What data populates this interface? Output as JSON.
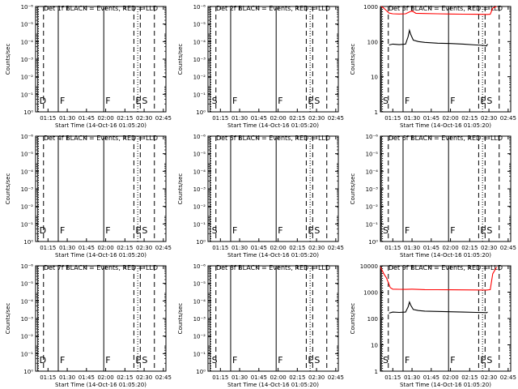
{
  "time_tick_labels": [
    "01:15",
    "01:30",
    "01:45",
    "02:00",
    "02:15",
    "02:30",
    "02:45"
  ],
  "colors": {
    "events": "#000000",
    "lld": "#ff0000",
    "axis": "#000000",
    "background": "#ffffff"
  },
  "chart_data": [
    {
      "type": "line",
      "title": "Det 1f BLACK = Events, RED = LLD",
      "xlabel": "Start Time (14-Oct-16 01:05:20)",
      "ylabel": "Counts/sec",
      "xlim": [
        "01:05:20",
        "02:47:00"
      ],
      "ylim": [
        1,
        10000
      ],
      "yscale": "log",
      "ytick_labels": [
        "10⁰",
        "10⁻¹",
        "10⁻²",
        "10⁻³",
        "10⁻⁴",
        "10⁻⁵",
        "10⁻⁶"
      ],
      "series": [],
      "markers": [
        {
          "time": "01:07:00",
          "style": "solid",
          "label": "D"
        },
        {
          "time": "01:07:30",
          "style": "dotted",
          "label": ""
        },
        {
          "time": "01:11:30",
          "style": "dashed",
          "label": ""
        },
        {
          "time": "01:23:00",
          "style": "solid",
          "label": "F"
        },
        {
          "time": "01:58:30",
          "style": "solid",
          "label": "F"
        },
        {
          "time": "02:22:00",
          "style": "dashed",
          "label": "E"
        },
        {
          "time": "02:25:00",
          "style": "dotted",
          "label": ""
        },
        {
          "time": "02:27:00",
          "style": "dashed",
          "label": "S"
        },
        {
          "time": "02:38:00",
          "style": "dashed",
          "label": ""
        }
      ]
    },
    {
      "type": "line",
      "title": "Det 2f BLACK = Events, RED = LLD",
      "xlabel": "Start Time (14-Oct-16 01:05:20)",
      "ylabel": "Counts/sec",
      "xlim": [
        "01:05:20",
        "02:47:00"
      ],
      "ylim": [
        1,
        10000
      ],
      "yscale": "log",
      "ytick_labels": [
        "10⁰",
        "10⁻¹",
        "10⁻²",
        "10⁻³",
        "10⁻⁴",
        "10⁻⁵",
        "10⁻⁶"
      ],
      "series": [],
      "markers": [
        {
          "time": "01:07:00",
          "style": "solid",
          "label": "S"
        },
        {
          "time": "01:07:30",
          "style": "dotted",
          "label": ""
        },
        {
          "time": "01:11:30",
          "style": "dashed",
          "label": ""
        },
        {
          "time": "01:23:00",
          "style": "solid",
          "label": "F"
        },
        {
          "time": "01:58:30",
          "style": "solid",
          "label": "F"
        },
        {
          "time": "02:22:00",
          "style": "dashed",
          "label": "E"
        },
        {
          "time": "02:25:00",
          "style": "dotted",
          "label": ""
        },
        {
          "time": "02:27:00",
          "style": "dashed",
          "label": "S"
        },
        {
          "time": "02:38:00",
          "style": "dashed",
          "label": ""
        }
      ]
    },
    {
      "type": "line",
      "title": "Det 3f BLACK = Events, RED = LLD",
      "xlabel": "Start Time (14-Oct-16 01:05:20)",
      "ylabel": "Counts/sec",
      "xlim": [
        "01:05:20",
        "02:47:00"
      ],
      "ylim": [
        1,
        1000
      ],
      "yscale": "log",
      "ytick_labels": [
        "1",
        "10",
        "100",
        "1000"
      ],
      "series": [
        {
          "color": "#ff0000",
          "x": [
            "01:06:00",
            "01:08:00",
            "01:12:00",
            "01:15:00",
            "01:20:00",
            "01:25:00",
            "01:28:00",
            "01:30:00",
            "01:33:00",
            "01:40:00",
            "01:50:00",
            "02:00:00",
            "02:10:00",
            "02:20:00",
            "02:28:00",
            "02:31:00",
            "02:33:00",
            "02:36:00"
          ],
          "values": [
            1000,
            900,
            650,
            620,
            610,
            620,
            700,
            750,
            640,
            630,
            620,
            610,
            605,
            600,
            595,
            600,
            900,
            1000
          ]
        },
        {
          "color": "#000000",
          "x": [
            "01:12:00",
            "01:15:00",
            "01:20:00",
            "01:25:00",
            "01:27:00",
            "01:28:00",
            "01:29:00",
            "01:31:00",
            "01:35:00",
            "01:40:00",
            "01:50:00",
            "02:00:00",
            "02:10:00",
            "02:20:00",
            "02:26:00",
            "02:28:00",
            "02:29:00"
          ],
          "values": [
            80,
            85,
            82,
            85,
            140,
            210,
            160,
            110,
            100,
            95,
            90,
            88,
            85,
            80,
            78,
            75,
            85
          ]
        }
      ],
      "markers": [
        {
          "time": "01:06:00",
          "style": "solid",
          "label": "S"
        },
        {
          "time": "01:07:00",
          "style": "dotted",
          "label": ""
        },
        {
          "time": "01:11:30",
          "style": "dashed",
          "label": ""
        },
        {
          "time": "01:23:00",
          "style": "solid",
          "label": "F"
        },
        {
          "time": "01:58:30",
          "style": "solid",
          "label": "F"
        },
        {
          "time": "02:22:00",
          "style": "dashed",
          "label": "E"
        },
        {
          "time": "02:25:00",
          "style": "dotted",
          "label": ""
        },
        {
          "time": "02:27:00",
          "style": "dashed",
          "label": "S"
        },
        {
          "time": "02:38:00",
          "style": "dashed",
          "label": ""
        }
      ]
    },
    {
      "type": "line",
      "title": "Det 4f BLACK = Events, RED = LLD",
      "xlabel": "Start Time (14-Oct-16 01:05:20)",
      "ylabel": "Counts/sec",
      "xlim": [
        "01:05:20",
        "02:47:00"
      ],
      "ylim": [
        1,
        10000
      ],
      "yscale": "log",
      "ytick_labels": [
        "10⁰",
        "10⁻¹",
        "10⁻²",
        "10⁻³",
        "10⁻⁴",
        "10⁻⁵",
        "10⁻⁶"
      ],
      "series": [],
      "markers": [
        {
          "time": "01:07:00",
          "style": "solid",
          "label": "D"
        },
        {
          "time": "01:07:30",
          "style": "dotted",
          "label": ""
        },
        {
          "time": "01:11:30",
          "style": "dashed",
          "label": ""
        },
        {
          "time": "01:23:00",
          "style": "solid",
          "label": "F"
        },
        {
          "time": "01:58:30",
          "style": "solid",
          "label": "F"
        },
        {
          "time": "02:22:00",
          "style": "dashed",
          "label": "E"
        },
        {
          "time": "02:25:00",
          "style": "dotted",
          "label": ""
        },
        {
          "time": "02:27:00",
          "style": "dashed",
          "label": "S"
        },
        {
          "time": "02:38:00",
          "style": "dashed",
          "label": ""
        }
      ]
    },
    {
      "type": "line",
      "title": "Det 5f BLACK = Events, RED = LLD",
      "xlabel": "Start Time (14-Oct-16 01:05:20)",
      "ylabel": "Counts/sec",
      "xlim": [
        "01:05:20",
        "02:47:00"
      ],
      "ylim": [
        1,
        10000
      ],
      "yscale": "log",
      "ytick_labels": [
        "10⁰",
        "10⁻¹",
        "10⁻²",
        "10⁻³",
        "10⁻⁴",
        "10⁻⁵",
        "10⁻⁶"
      ],
      "series": [],
      "markers": [
        {
          "time": "01:07:00",
          "style": "solid",
          "label": "S"
        },
        {
          "time": "01:07:30",
          "style": "dotted",
          "label": ""
        },
        {
          "time": "01:11:30",
          "style": "dashed",
          "label": ""
        },
        {
          "time": "01:23:00",
          "style": "solid",
          "label": "F"
        },
        {
          "time": "01:58:30",
          "style": "solid",
          "label": "F"
        },
        {
          "time": "02:22:00",
          "style": "dashed",
          "label": "E"
        },
        {
          "time": "02:25:00",
          "style": "dotted",
          "label": ""
        },
        {
          "time": "02:27:00",
          "style": "dashed",
          "label": "S"
        },
        {
          "time": "02:38:00",
          "style": "dashed",
          "label": ""
        }
      ]
    },
    {
      "type": "line",
      "title": "Det 6f BLACK = Events, RED = LLD",
      "xlabel": "Start Time (14-Oct-16 01:05:20)",
      "ylabel": "Counts/sec",
      "xlim": [
        "01:05:20",
        "02:47:00"
      ],
      "ylim": [
        1,
        10000
      ],
      "yscale": "log",
      "ytick_labels": [
        "10⁰",
        "10⁻¹",
        "10⁻²",
        "10⁻³",
        "10⁻⁴",
        "10⁻⁵",
        "10⁻⁶"
      ],
      "series": [],
      "markers": [
        {
          "time": "01:06:00",
          "style": "solid",
          "label": "S"
        },
        {
          "time": "01:07:00",
          "style": "dotted",
          "label": ""
        },
        {
          "time": "01:11:30",
          "style": "dashed",
          "label": ""
        },
        {
          "time": "01:23:00",
          "style": "solid",
          "label": "F"
        },
        {
          "time": "01:58:30",
          "style": "solid",
          "label": "F"
        },
        {
          "time": "02:22:00",
          "style": "dashed",
          "label": "E"
        },
        {
          "time": "02:25:00",
          "style": "dotted",
          "label": ""
        },
        {
          "time": "02:27:00",
          "style": "dashed",
          "label": "S"
        },
        {
          "time": "02:38:00",
          "style": "dashed",
          "label": ""
        }
      ]
    },
    {
      "type": "line",
      "title": "Det 7f BLACK = Events, RED = LLD",
      "xlabel": "Start Time (14-Oct-16 01:05:20)",
      "ylabel": "Counts/sec",
      "xlim": [
        "01:05:20",
        "02:47:00"
      ],
      "ylim": [
        1,
        10000
      ],
      "yscale": "log",
      "ytick_labels": [
        "10⁰",
        "10⁻¹",
        "10⁻²",
        "10⁻³",
        "10⁻⁴",
        "10⁻⁵",
        "10⁻⁶"
      ],
      "series": [],
      "markers": [
        {
          "time": "01:07:00",
          "style": "solid",
          "label": "D"
        },
        {
          "time": "01:07:30",
          "style": "dotted",
          "label": ""
        },
        {
          "time": "01:11:30",
          "style": "dashed",
          "label": ""
        },
        {
          "time": "01:23:00",
          "style": "solid",
          "label": "F"
        },
        {
          "time": "01:58:30",
          "style": "solid",
          "label": "F"
        },
        {
          "time": "02:22:00",
          "style": "dashed",
          "label": "E"
        },
        {
          "time": "02:25:00",
          "style": "dotted",
          "label": ""
        },
        {
          "time": "02:27:00",
          "style": "dashed",
          "label": "S"
        },
        {
          "time": "02:38:00",
          "style": "dashed",
          "label": ""
        }
      ]
    },
    {
      "type": "line",
      "title": "Det 8f BLACK = Events, RED = LLD",
      "xlabel": "Start Time (14-Oct-16 01:05:20)",
      "ylabel": "Counts/sec",
      "xlim": [
        "01:05:20",
        "02:47:00"
      ],
      "ylim": [
        1,
        10000
      ],
      "yscale": "log",
      "ytick_labels": [
        "10⁰",
        "10⁻¹",
        "10⁻²",
        "10⁻³",
        "10⁻⁴",
        "10⁻⁵",
        "10⁻⁶"
      ],
      "series": [],
      "markers": [
        {
          "time": "01:07:00",
          "style": "solid",
          "label": "S"
        },
        {
          "time": "01:07:30",
          "style": "dotted",
          "label": ""
        },
        {
          "time": "01:11:30",
          "style": "dashed",
          "label": ""
        },
        {
          "time": "01:23:00",
          "style": "solid",
          "label": "F"
        },
        {
          "time": "01:58:30",
          "style": "solid",
          "label": "F"
        },
        {
          "time": "02:22:00",
          "style": "dashed",
          "label": "E"
        },
        {
          "time": "02:25:00",
          "style": "dotted",
          "label": ""
        },
        {
          "time": "02:27:00",
          "style": "dashed",
          "label": "S"
        },
        {
          "time": "02:38:00",
          "style": "dashed",
          "label": ""
        }
      ]
    },
    {
      "type": "line",
      "title": "Det 9f BLACK = Events, RED = LLD",
      "xlabel": "Start Time (14-Oct-16 01:05:20)",
      "ylabel": "Counts/sec",
      "xlim": [
        "01:05:20",
        "02:47:00"
      ],
      "ylim": [
        1,
        10000
      ],
      "yscale": "log",
      "ytick_labels": [
        "1",
        "10",
        "100",
        "1000",
        "10000"
      ],
      "series": [
        {
          "color": "#ff0000",
          "x": [
            "01:05:20",
            "01:08:00",
            "01:10:00",
            "01:12:00",
            "01:13:00",
            "01:15:00",
            "01:20:00",
            "01:25:00",
            "01:30:00",
            "01:40:00",
            "01:50:00",
            "02:00:00",
            "02:10:00",
            "02:20:00",
            "02:28:00",
            "02:31:00",
            "02:33:00",
            "02:36:00"
          ],
          "values": [
            9000,
            5000,
            3500,
            2000,
            1500,
            1300,
            1280,
            1270,
            1300,
            1250,
            1240,
            1230,
            1220,
            1210,
            1200,
            1250,
            5000,
            9000
          ]
        },
        {
          "color": "#000000",
          "x": [
            "01:12:00",
            "01:15:00",
            "01:20:00",
            "01:25:00",
            "01:27:00",
            "01:28:00",
            "01:29:00",
            "01:31:00",
            "01:35:00",
            "01:40:00",
            "01:50:00",
            "02:00:00",
            "02:10:00",
            "02:20:00",
            "02:26:00",
            "02:28:00",
            "02:29:00"
          ],
          "values": [
            160,
            175,
            170,
            175,
            280,
            420,
            320,
            220,
            200,
            190,
            185,
            180,
            175,
            170,
            168,
            165,
            175
          ]
        }
      ],
      "markers": [
        {
          "time": "01:06:00",
          "style": "solid",
          "label": "S"
        },
        {
          "time": "01:07:00",
          "style": "dotted",
          "label": ""
        },
        {
          "time": "01:11:30",
          "style": "dashed",
          "label": ""
        },
        {
          "time": "01:23:00",
          "style": "solid",
          "label": "F"
        },
        {
          "time": "01:58:30",
          "style": "solid",
          "label": "F"
        },
        {
          "time": "02:22:00",
          "style": "dashed",
          "label": "E"
        },
        {
          "time": "02:25:00",
          "style": "dotted",
          "label": ""
        },
        {
          "time": "02:27:00",
          "style": "dashed",
          "label": "S"
        },
        {
          "time": "02:38:00",
          "style": "dashed",
          "label": ""
        }
      ]
    }
  ]
}
